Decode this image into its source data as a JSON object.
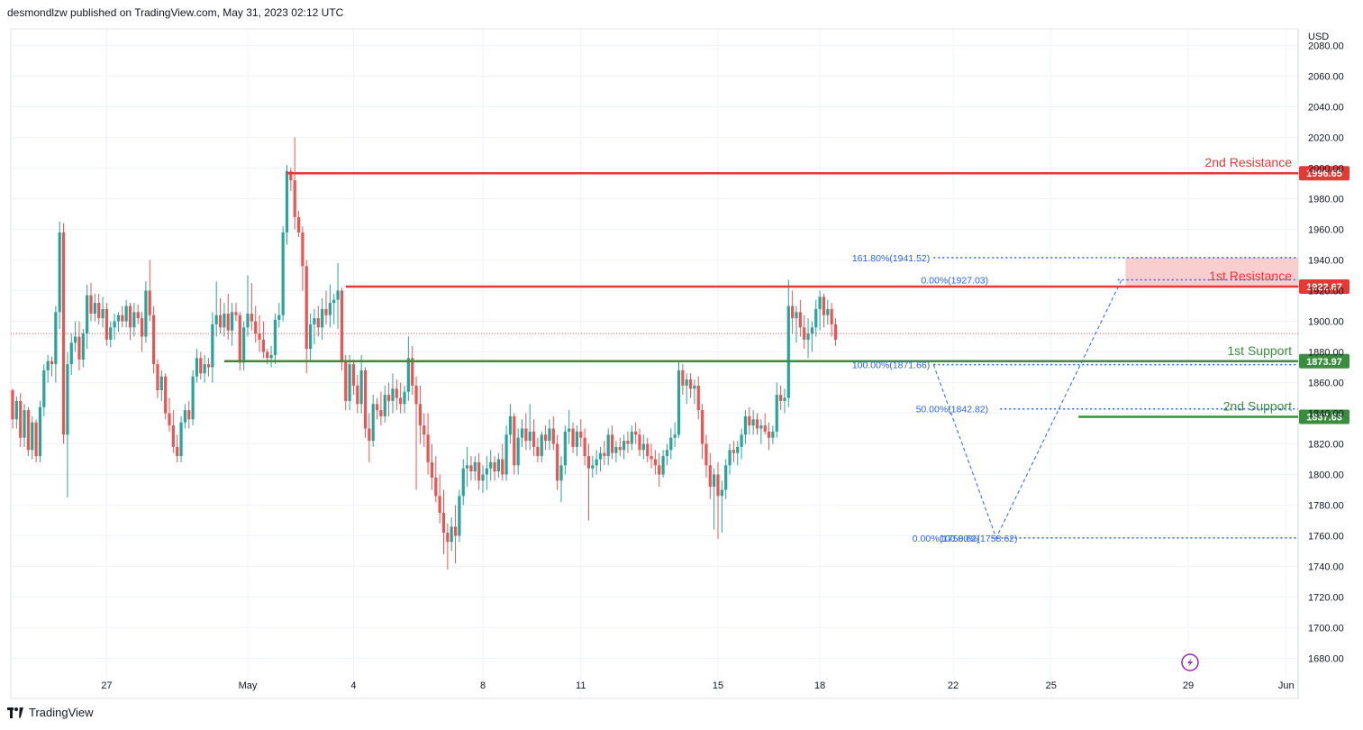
{
  "header": {
    "publisher": "desmondlzw published on TradingView.com, May 31, 2023 02:12 UTC"
  },
  "footer": {
    "brand": "TradingView"
  },
  "colors": {
    "up": "#26a69a",
    "down": "#ef5350",
    "resistance": "#e53935",
    "support": "#388e3c",
    "fib": "#2962ff",
    "zone": "#f8c5c5"
  },
  "chart_data": {
    "type": "candlestick",
    "currency": "USD",
    "ylim": [
      1668,
      2090
    ],
    "y_ticks": [
      1680,
      1700,
      1720,
      1740,
      1760,
      1780,
      1800,
      1820,
      1840,
      1860,
      1880,
      1900,
      1920,
      1940,
      1960,
      1980,
      2000,
      2020,
      2040,
      2060,
      2080
    ],
    "y_tick_labels": [
      "1680.00",
      "1700.00",
      "1720.00",
      "1740.00",
      "1760.00",
      "1780.00",
      "1800.00",
      "1820.00",
      "1840.00",
      "1860.00",
      "1880.00",
      "1900.00",
      "1920.00",
      "1940.00",
      "1960.00",
      "1980.00",
      "2000.00",
      "2020.00",
      "2040.00",
      "2060.00",
      "2080.00"
    ],
    "x_ticks": [
      {
        "label": "27",
        "bar": 24
      },
      {
        "label": "May",
        "bar": 60
      },
      {
        "label": "4",
        "bar": 87
      },
      {
        "label": "8",
        "bar": 120
      },
      {
        "label": "11",
        "bar": 145
      },
      {
        "label": "15",
        "bar": 180
      },
      {
        "label": "18",
        "bar": 206
      },
      {
        "label": "22",
        "bar": 240
      },
      {
        "label": "25",
        "bar": 265
      },
      {
        "label": "29",
        "bar": 300
      },
      {
        "label": "Jun",
        "bar": 325
      }
    ],
    "candles": [
      [
        1855,
        1856,
        1830,
        1836
      ],
      [
        1836,
        1851,
        1830,
        1848
      ],
      [
        1848,
        1853,
        1818,
        1824
      ],
      [
        1824,
        1846,
        1818,
        1842
      ],
      [
        1842,
        1844,
        1812,
        1816
      ],
      [
        1816,
        1838,
        1810,
        1834
      ],
      [
        1834,
        1836,
        1808,
        1812
      ],
      [
        1812,
        1848,
        1808,
        1844
      ],
      [
        1844,
        1872,
        1838,
        1868
      ],
      [
        1868,
        1878,
        1860,
        1874
      ],
      [
        1874,
        1877,
        1864,
        1872
      ],
      [
        1872,
        1910,
        1860,
        1906
      ],
      [
        1906,
        1965,
        1895,
        1958
      ],
      [
        1958,
        1964,
        1820,
        1826
      ],
      [
        1826,
        1880,
        1785,
        1872
      ],
      [
        1872,
        1892,
        1865,
        1886
      ],
      [
        1886,
        1900,
        1880,
        1890
      ],
      [
        1890,
        1900,
        1868,
        1875
      ],
      [
        1875,
        1895,
        1870,
        1892
      ],
      [
        1892,
        1924,
        1882,
        1917
      ],
      [
        1917,
        1925,
        1900,
        1905
      ],
      [
        1905,
        1918,
        1900,
        1912
      ],
      [
        1912,
        1918,
        1898,
        1902
      ],
      [
        1902,
        1916,
        1896,
        1908
      ],
      [
        1908,
        1912,
        1884,
        1888
      ],
      [
        1888,
        1900,
        1883,
        1896
      ],
      [
        1896,
        1905,
        1888,
        1900
      ],
      [
        1900,
        1906,
        1893,
        1904
      ],
      [
        1904,
        1910,
        1896,
        1900
      ],
      [
        1900,
        1914,
        1896,
        1910
      ],
      [
        1910,
        1912,
        1888,
        1896
      ],
      [
        1896,
        1912,
        1890,
        1906
      ],
      [
        1906,
        1911,
        1898,
        1902
      ],
      [
        1902,
        1906,
        1880,
        1890
      ],
      [
        1890,
        1926,
        1886,
        1920
      ],
      [
        1920,
        1940,
        1900,
        1904
      ],
      [
        1904,
        1910,
        1866,
        1872
      ],
      [
        1872,
        1875,
        1850,
        1855
      ],
      [
        1855,
        1868,
        1848,
        1864
      ],
      [
        1864,
        1866,
        1836,
        1840
      ],
      [
        1840,
        1850,
        1828,
        1832
      ],
      [
        1832,
        1842,
        1814,
        1818
      ],
      [
        1818,
        1826,
        1808,
        1812
      ],
      [
        1812,
        1838,
        1808,
        1834
      ],
      [
        1834,
        1846,
        1830,
        1842
      ],
      [
        1842,
        1848,
        1830,
        1836
      ],
      [
        1836,
        1868,
        1832,
        1864
      ],
      [
        1864,
        1882,
        1860,
        1876
      ],
      [
        1876,
        1880,
        1862,
        1866
      ],
      [
        1866,
        1878,
        1860,
        1872
      ],
      [
        1872,
        1876,
        1864,
        1870
      ],
      [
        1870,
        1906,
        1860,
        1898
      ],
      [
        1898,
        1926,
        1890,
        1904
      ],
      [
        1904,
        1915,
        1892,
        1896
      ],
      [
        1896,
        1912,
        1890,
        1905
      ],
      [
        1905,
        1918,
        1888,
        1894
      ],
      [
        1894,
        1912,
        1884,
        1906
      ],
      [
        1906,
        1912,
        1900,
        1904
      ],
      [
        1904,
        1906,
        1868,
        1873
      ],
      [
        1873,
        1900,
        1868,
        1896
      ],
      [
        1896,
        1930,
        1890,
        1905
      ],
      [
        1905,
        1925,
        1894,
        1900
      ],
      [
        1900,
        1910,
        1886,
        1892
      ],
      [
        1892,
        1904,
        1880,
        1888
      ],
      [
        1888,
        1900,
        1876,
        1880
      ],
      [
        1880,
        1882,
        1872,
        1876
      ],
      [
        1876,
        1884,
        1870,
        1878
      ],
      [
        1878,
        1905,
        1872,
        1901
      ],
      [
        1901,
        1912,
        1896,
        1904
      ],
      [
        1904,
        1962,
        1900,
        1958
      ],
      [
        1958,
        2002,
        1950,
        1998
      ],
      [
        1998,
        2000,
        1985,
        1992
      ],
      [
        1992,
        2020,
        1960,
        1968
      ],
      [
        1968,
        1972,
        1955,
        1958
      ],
      [
        1958,
        1962,
        1920,
        1936
      ],
      [
        1936,
        1940,
        1866,
        1882
      ],
      [
        1882,
        1905,
        1874,
        1898
      ],
      [
        1898,
        1908,
        1885,
        1902
      ],
      [
        1902,
        1910,
        1890,
        1896
      ],
      [
        1896,
        1915,
        1888,
        1908
      ],
      [
        1908,
        1920,
        1898,
        1904
      ],
      [
        1904,
        1924,
        1896,
        1912
      ],
      [
        1912,
        1918,
        1898,
        1914
      ],
      [
        1914,
        1938,
        1895,
        1920
      ],
      [
        1920,
        1922,
        1868,
        1874
      ],
      [
        1874,
        1878,
        1842,
        1848
      ],
      [
        1848,
        1878,
        1842,
        1872
      ],
      [
        1872,
        1875,
        1852,
        1858
      ],
      [
        1858,
        1865,
        1840,
        1846
      ],
      [
        1846,
        1878,
        1840,
        1868
      ],
      [
        1868,
        1870,
        1824,
        1830
      ],
      [
        1830,
        1840,
        1808,
        1822
      ],
      [
        1822,
        1852,
        1818,
        1846
      ],
      [
        1846,
        1850,
        1836,
        1842
      ],
      [
        1842,
        1854,
        1832,
        1838
      ],
      [
        1838,
        1858,
        1834,
        1852
      ],
      [
        1852,
        1860,
        1838,
        1848
      ],
      [
        1848,
        1866,
        1840,
        1856
      ],
      [
        1856,
        1862,
        1842,
        1850
      ],
      [
        1850,
        1860,
        1840,
        1846
      ],
      [
        1846,
        1858,
        1840,
        1854
      ],
      [
        1854,
        1890,
        1848,
        1876
      ],
      [
        1876,
        1884,
        1852,
        1858
      ],
      [
        1858,
        1864,
        1790,
        1846
      ],
      [
        1846,
        1858,
        1820,
        1832
      ],
      [
        1832,
        1840,
        1818,
        1826
      ],
      [
        1826,
        1840,
        1800,
        1808
      ],
      [
        1808,
        1820,
        1790,
        1798
      ],
      [
        1798,
        1812,
        1782,
        1786
      ],
      [
        1786,
        1800,
        1768,
        1775
      ],
      [
        1775,
        1790,
        1748,
        1762
      ],
      [
        1762,
        1768,
        1738,
        1756
      ],
      [
        1756,
        1772,
        1750,
        1766
      ],
      [
        1766,
        1780,
        1742,
        1760
      ],
      [
        1760,
        1790,
        1756,
        1786
      ],
      [
        1786,
        1810,
        1780,
        1804
      ],
      [
        1804,
        1818,
        1792,
        1806
      ],
      [
        1806,
        1812,
        1796,
        1802
      ],
      [
        1802,
        1812,
        1796,
        1808
      ],
      [
        1808,
        1814,
        1790,
        1796
      ],
      [
        1796,
        1806,
        1788,
        1800
      ],
      [
        1800,
        1812,
        1790,
        1804
      ],
      [
        1804,
        1816,
        1796,
        1808
      ],
      [
        1808,
        1812,
        1796,
        1802
      ],
      [
        1802,
        1814,
        1798,
        1810
      ],
      [
        1810,
        1820,
        1796,
        1800
      ],
      [
        1800,
        1832,
        1796,
        1826
      ],
      [
        1826,
        1846,
        1820,
        1838
      ],
      [
        1838,
        1840,
        1800,
        1806
      ],
      [
        1806,
        1830,
        1800,
        1824
      ],
      [
        1824,
        1836,
        1818,
        1830
      ],
      [
        1830,
        1840,
        1816,
        1822
      ],
      [
        1822,
        1846,
        1816,
        1828
      ],
      [
        1828,
        1836,
        1812,
        1818
      ],
      [
        1818,
        1824,
        1808,
        1812
      ],
      [
        1812,
        1828,
        1808,
        1826
      ],
      [
        1826,
        1832,
        1816,
        1822
      ],
      [
        1822,
        1836,
        1816,
        1830
      ],
      [
        1830,
        1838,
        1816,
        1820
      ],
      [
        1820,
        1826,
        1790,
        1796
      ],
      [
        1796,
        1812,
        1782,
        1806
      ],
      [
        1806,
        1832,
        1800,
        1828
      ],
      [
        1828,
        1842,
        1820,
        1830
      ],
      [
        1830,
        1834,
        1814,
        1818
      ],
      [
        1818,
        1832,
        1812,
        1828
      ],
      [
        1828,
        1836,
        1818,
        1824
      ],
      [
        1824,
        1830,
        1806,
        1812
      ],
      [
        1812,
        1820,
        1770,
        1804
      ],
      [
        1804,
        1812,
        1798,
        1806
      ],
      [
        1806,
        1816,
        1800,
        1810
      ],
      [
        1810,
        1818,
        1802,
        1814
      ],
      [
        1814,
        1822,
        1806,
        1812
      ],
      [
        1812,
        1830,
        1806,
        1826
      ],
      [
        1826,
        1832,
        1810,
        1814
      ],
      [
        1814,
        1822,
        1808,
        1818
      ],
      [
        1818,
        1824,
        1812,
        1816
      ],
      [
        1816,
        1826,
        1810,
        1822
      ],
      [
        1822,
        1828,
        1814,
        1820
      ],
      [
        1820,
        1832,
        1816,
        1828
      ],
      [
        1828,
        1834,
        1820,
        1826
      ],
      [
        1826,
        1830,
        1812,
        1816
      ],
      [
        1816,
        1826,
        1810,
        1820
      ],
      [
        1820,
        1824,
        1808,
        1812
      ],
      [
        1812,
        1820,
        1804,
        1810
      ],
      [
        1810,
        1816,
        1800,
        1806
      ],
      [
        1806,
        1814,
        1792,
        1800
      ],
      [
        1800,
        1816,
        1798,
        1812
      ],
      [
        1812,
        1820,
        1806,
        1816
      ],
      [
        1816,
        1830,
        1810,
        1824
      ],
      [
        1824,
        1834,
        1818,
        1826
      ],
      [
        1826,
        1874,
        1824,
        1868
      ],
      [
        1868,
        1872,
        1852,
        1858
      ],
      [
        1858,
        1866,
        1846,
        1862
      ],
      [
        1862,
        1866,
        1850,
        1856
      ],
      [
        1856,
        1862,
        1846,
        1858
      ],
      [
        1858,
        1864,
        1836,
        1842
      ],
      [
        1842,
        1846,
        1810,
        1820
      ],
      [
        1820,
        1826,
        1798,
        1806
      ],
      [
        1806,
        1814,
        1784,
        1792
      ],
      [
        1792,
        1804,
        1764,
        1800
      ],
      [
        1800,
        1808,
        1758,
        1786
      ],
      [
        1786,
        1796,
        1762,
        1790
      ],
      [
        1790,
        1810,
        1784,
        1806
      ],
      [
        1806,
        1820,
        1800,
        1816
      ],
      [
        1816,
        1822,
        1808,
        1814
      ],
      [
        1814,
        1822,
        1806,
        1818
      ],
      [
        1818,
        1830,
        1810,
        1826
      ],
      [
        1826,
        1842,
        1820,
        1838
      ],
      [
        1838,
        1844,
        1826,
        1832
      ],
      [
        1832,
        1842,
        1826,
        1836
      ],
      [
        1836,
        1840,
        1826,
        1830
      ],
      [
        1830,
        1836,
        1820,
        1832
      ],
      [
        1832,
        1840,
        1826,
        1828
      ],
      [
        1828,
        1834,
        1816,
        1824
      ],
      [
        1824,
        1832,
        1820,
        1828
      ],
      [
        1828,
        1860,
        1824,
        1852
      ],
      [
        1852,
        1858,
        1842,
        1848
      ],
      [
        1848,
        1856,
        1840,
        1850
      ],
      [
        1850,
        1927,
        1844,
        1910
      ],
      [
        1910,
        1920,
        1892,
        1902
      ],
      [
        1902,
        1910,
        1886,
        1906
      ],
      [
        1906,
        1914,
        1890,
        1896
      ],
      [
        1896,
        1904,
        1882,
        1888
      ],
      [
        1888,
        1902,
        1876,
        1892
      ],
      [
        1892,
        1900,
        1880,
        1896
      ],
      [
        1896,
        1914,
        1890,
        1908
      ],
      [
        1908,
        1920,
        1894,
        1916
      ],
      [
        1916,
        1918,
        1896,
        1904
      ],
      [
        1904,
        1914,
        1898,
        1908
      ],
      [
        1908,
        1912,
        1890,
        1898
      ],
      [
        1898,
        1902,
        1884,
        1888
      ]
    ],
    "current_price": 1892,
    "levels": [
      {
        "name": "2nd Resistance",
        "value": 1996.65,
        "label": "1996.65",
        "kind": "resistance",
        "start_bar": 70
      },
      {
        "name": "1st Resistance",
        "value": 1922.67,
        "label": "1922.67",
        "kind": "resistance",
        "start_bar": 85
      },
      {
        "name": "1st Support",
        "value": 1873.97,
        "label": "1873.97",
        "kind": "support",
        "start_bar": 54
      },
      {
        "name": "2nd Support",
        "value": 1837.63,
        "label": "1837.63",
        "kind": "support",
        "start_bar": 272
      }
    ],
    "fib": [
      {
        "label": "161.80%(1941.52)",
        "value": 1941.52
      },
      {
        "label": "0.00%(1927.03)",
        "value": 1927.03
      },
      {
        "label": "100.00%(1871.66)",
        "value": 1871.66
      },
      {
        "label": "50.00%(1842.82)",
        "value": 1842.82
      },
      {
        "label": "0.00%(1758.62)",
        "value": 1758.62
      },
      {
        "label": "100.00%(1758.62)",
        "value": 1758.62
      }
    ],
    "resistance_zone": [
      1922.67,
      1941.52
    ]
  }
}
